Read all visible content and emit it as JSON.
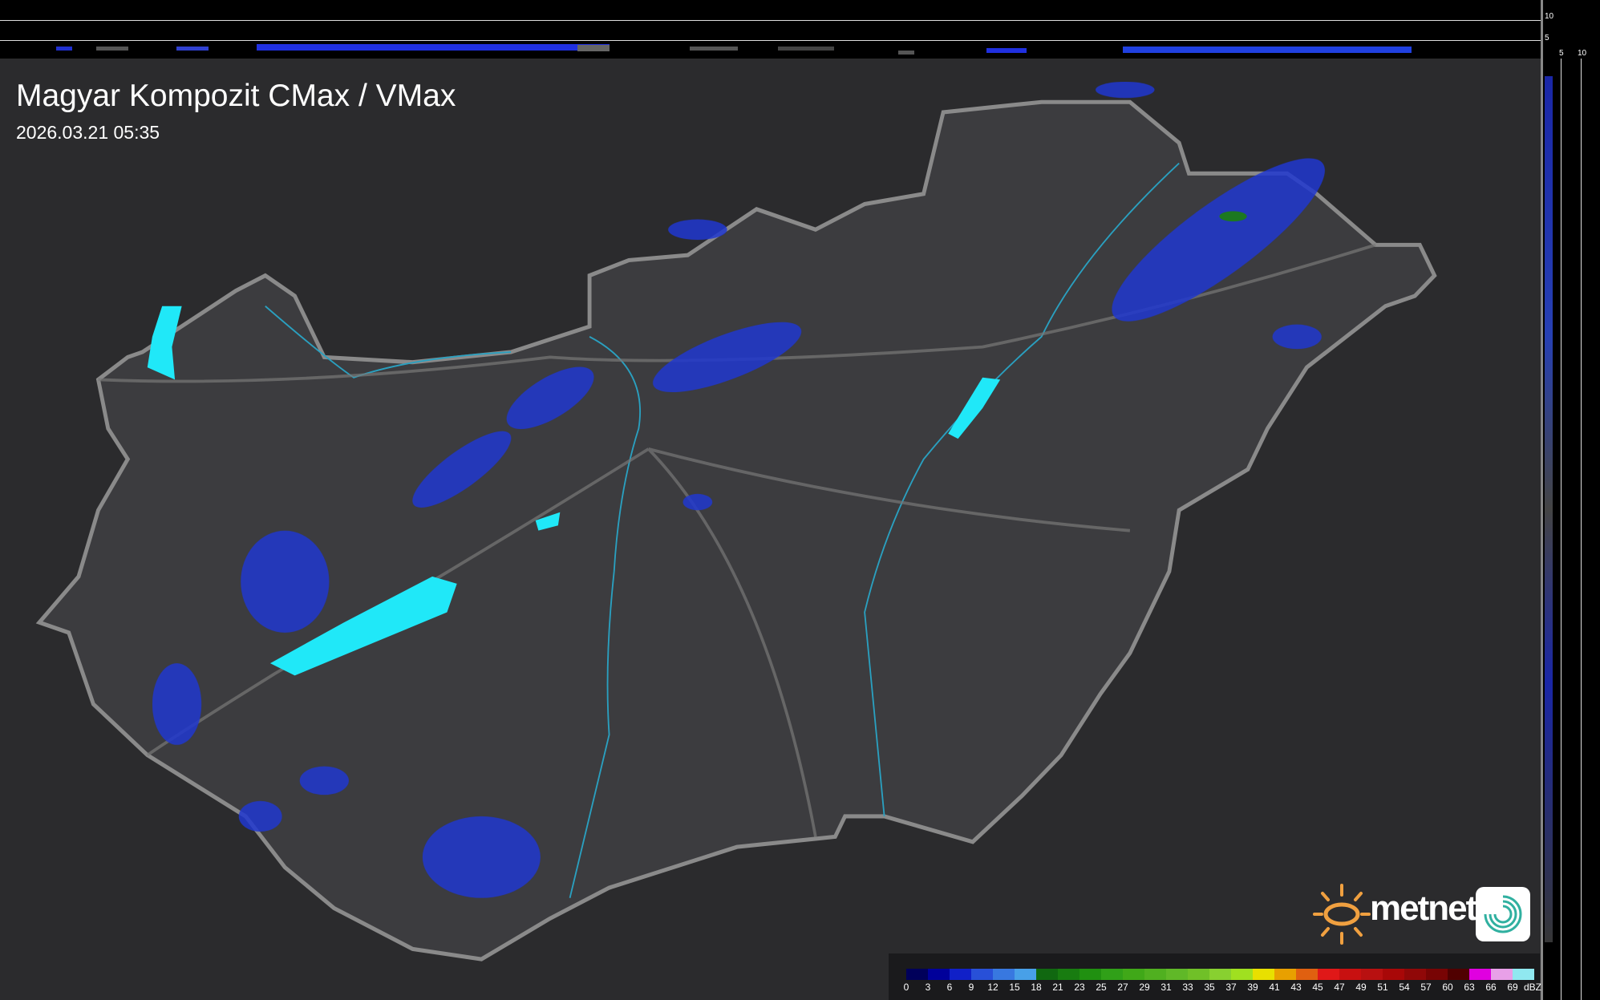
{
  "header": {
    "title": "Magyar Kompozit CMax / VMax",
    "timestamp": "2026.03.21 05:35"
  },
  "profile_axes": {
    "top_ticks": [
      "10",
      "5"
    ],
    "right_ticks": [
      "5",
      "10"
    ]
  },
  "legend": {
    "unit": "dBZ",
    "labels": [
      "0",
      "3",
      "6",
      "9",
      "12",
      "15",
      "18",
      "21",
      "23",
      "25",
      "27",
      "29",
      "31",
      "33",
      "35",
      "37",
      "39",
      "41",
      "43",
      "45",
      "47",
      "49",
      "51",
      "54",
      "57",
      "60",
      "63",
      "66",
      "69"
    ],
    "colors": [
      "#00005a",
      "#00009a",
      "#1020c8",
      "#2850d8",
      "#3878e0",
      "#48a0e8",
      "#106810",
      "#187c10",
      "#209010",
      "#30a018",
      "#40a818",
      "#50b020",
      "#60b828",
      "#70c028",
      "#88d030",
      "#a0e020",
      "#e8e000",
      "#e8a000",
      "#e06010",
      "#e01818",
      "#c81010",
      "#b81010",
      "#a80808",
      "#900808",
      "#780404",
      "#500000",
      "#e000e0",
      "#e8a0e8",
      "#90e8f0"
    ]
  },
  "branding": {
    "logo_text": "metnet",
    "sun_color": "#f0a040",
    "app_icon_color": "#30b0a0"
  },
  "map": {
    "country_fill": "#3c3c3f",
    "border_color": "#8a8a8a",
    "river_color": "#2aa0c0",
    "lake_color": "#20e8f8",
    "echo_color": "#2038d0"
  }
}
